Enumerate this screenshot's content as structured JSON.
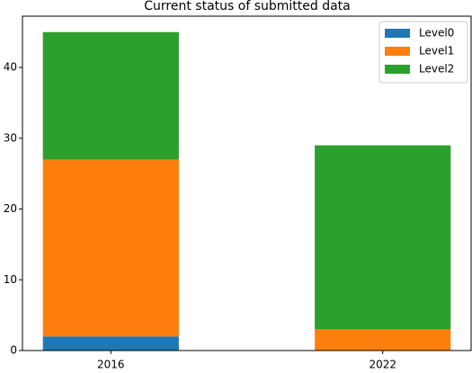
{
  "chart_data": {
    "type": "stacked_bar",
    "title": "Current status of submitted data",
    "categories": [
      "2016",
      "2022"
    ],
    "series": [
      {
        "name": "Level0",
        "color": "#1f77b4",
        "values": [
          2,
          0
        ]
      },
      {
        "name": "Level1",
        "color": "#ff7f0e",
        "values": [
          25,
          3
        ]
      },
      {
        "name": "Level2",
        "color": "#2ca02c",
        "values": [
          18,
          26
        ]
      }
    ],
    "ylim": [
      0,
      47.25
    ],
    "yticks": [
      0,
      10,
      20,
      30,
      40
    ],
    "grid": false,
    "legend": "upper right"
  }
}
